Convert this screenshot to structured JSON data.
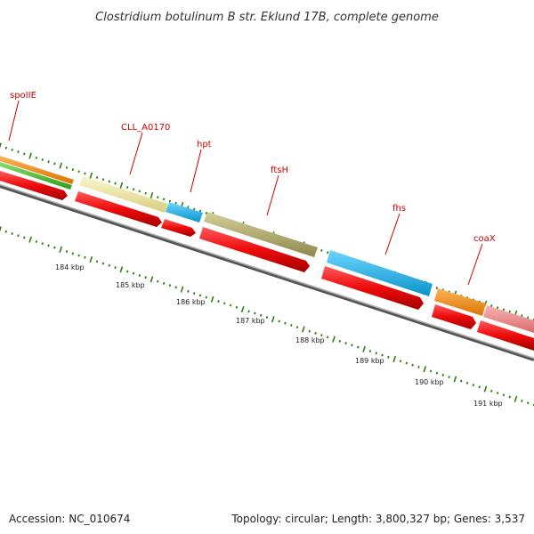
{
  "header": {
    "title": "Clostridium botulinum B str. Eklund 17B, complete genome"
  },
  "footer": {
    "accession": "Accession: NC_010674",
    "summary": "Topology: circular; Length: 3,800,327 bp; Genes: 3,537"
  },
  "genes": [
    {
      "name": "spoIIE"
    },
    {
      "name": "CLL_A0170"
    },
    {
      "name": "hpt"
    },
    {
      "name": "ftsH"
    },
    {
      "name": "fhs"
    },
    {
      "name": "coaX"
    }
  ],
  "ruler": {
    "labels": [
      "184 kbp",
      "185 kbp",
      "186 kbp",
      "187 kbp",
      "188 kbp",
      "189 kbp",
      "190 kbp",
      "191 kbp"
    ]
  },
  "colors": {
    "label_red": "#cc0000",
    "tick_green": "#2e7d10",
    "cds_red": "#ee1111",
    "orange": "#f08c12",
    "green": "#55c23a",
    "pale_yellow": "#efe7a0",
    "cyan": "#1fb6e8",
    "olive": "#b5b172",
    "pink": "#ee8a8a",
    "backbone": "#888888"
  }
}
